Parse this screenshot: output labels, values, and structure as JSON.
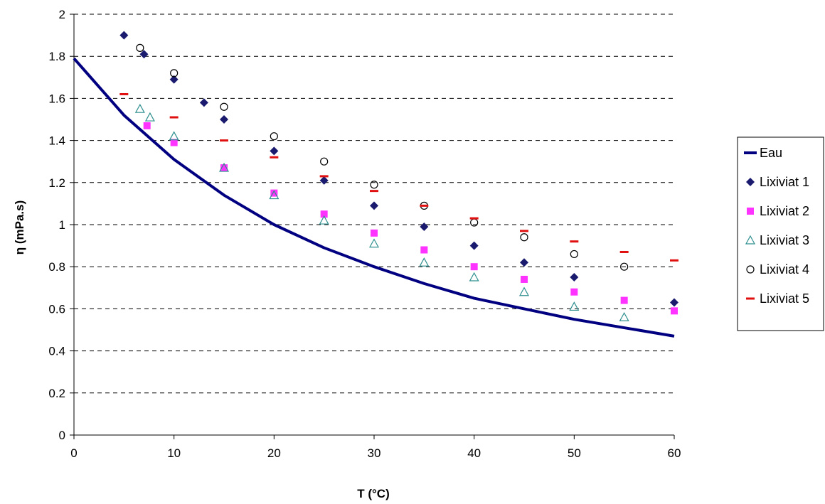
{
  "chart_data": {
    "type": "scatter",
    "title": "",
    "xlabel": "T (°C)",
    "ylabel": "η (mPa.s)",
    "xlim": [
      0,
      60
    ],
    "ylim": [
      0,
      2
    ],
    "x_ticks": [
      "0",
      "10",
      "20",
      "30",
      "40",
      "50",
      "60"
    ],
    "y_ticks": [
      "0",
      "0.2",
      "0.4",
      "0.6",
      "0.8",
      "1",
      "1.2",
      "1.4",
      "1.6",
      "1.8",
      "2"
    ],
    "grid": "horizontal dashed",
    "legend_position": "right",
    "series": [
      {
        "name": "Eau",
        "style": "line",
        "color": "#000080",
        "x": [
          0,
          5,
          10,
          15,
          20,
          25,
          30,
          35,
          40,
          45,
          50,
          55,
          60
        ],
        "y": [
          1.79,
          1.52,
          1.31,
          1.14,
          1.0,
          0.89,
          0.8,
          0.72,
          0.65,
          0.6,
          0.55,
          0.51,
          0.47
        ]
      },
      {
        "name": "Lixiviat 1",
        "style": "marker",
        "marker": "diamond",
        "color": "#1a1a6e",
        "x": [
          5,
          7,
          10,
          13,
          15,
          20,
          25,
          30,
          35,
          40,
          45,
          50,
          60
        ],
        "y": [
          1.9,
          1.81,
          1.69,
          1.58,
          1.5,
          1.35,
          1.21,
          1.09,
          0.99,
          0.9,
          0.82,
          0.75,
          0.63
        ]
      },
      {
        "name": "Lixiviat 2",
        "style": "marker",
        "marker": "square",
        "color": "#ff33ff",
        "x": [
          7.3,
          10,
          15,
          20,
          25,
          30,
          35,
          40,
          45,
          50,
          55,
          60
        ],
        "y": [
          1.47,
          1.39,
          1.27,
          1.15,
          1.05,
          0.96,
          0.88,
          0.8,
          0.74,
          0.68,
          0.64,
          0.59
        ]
      },
      {
        "name": "Lixiviat 3",
        "style": "marker",
        "marker": "triangle",
        "color": "#2f8f8f",
        "x": [
          6.6,
          7.6,
          10,
          15,
          20,
          25,
          30,
          35,
          40,
          45,
          50,
          55
        ],
        "y": [
          1.55,
          1.51,
          1.42,
          1.27,
          1.14,
          1.02,
          0.91,
          0.82,
          0.75,
          0.68,
          0.61,
          0.56
        ]
      },
      {
        "name": "Lixiviat 4",
        "style": "marker",
        "marker": "circle",
        "color": "#000000",
        "x": [
          6.6,
          10,
          15,
          20,
          25,
          30,
          35,
          40,
          45,
          50,
          55
        ],
        "y": [
          1.84,
          1.72,
          1.56,
          1.42,
          1.3,
          1.19,
          1.09,
          1.01,
          0.94,
          0.86,
          0.8
        ]
      },
      {
        "name": "Lixiviat 5",
        "style": "marker",
        "marker": "dash",
        "color": "#e01010",
        "x": [
          5,
          10,
          15,
          20,
          25,
          30,
          35,
          40,
          45,
          50,
          55,
          60
        ],
        "y": [
          1.62,
          1.51,
          1.4,
          1.32,
          1.23,
          1.16,
          1.09,
          1.03,
          0.97,
          0.92,
          0.87,
          0.83
        ]
      }
    ]
  }
}
